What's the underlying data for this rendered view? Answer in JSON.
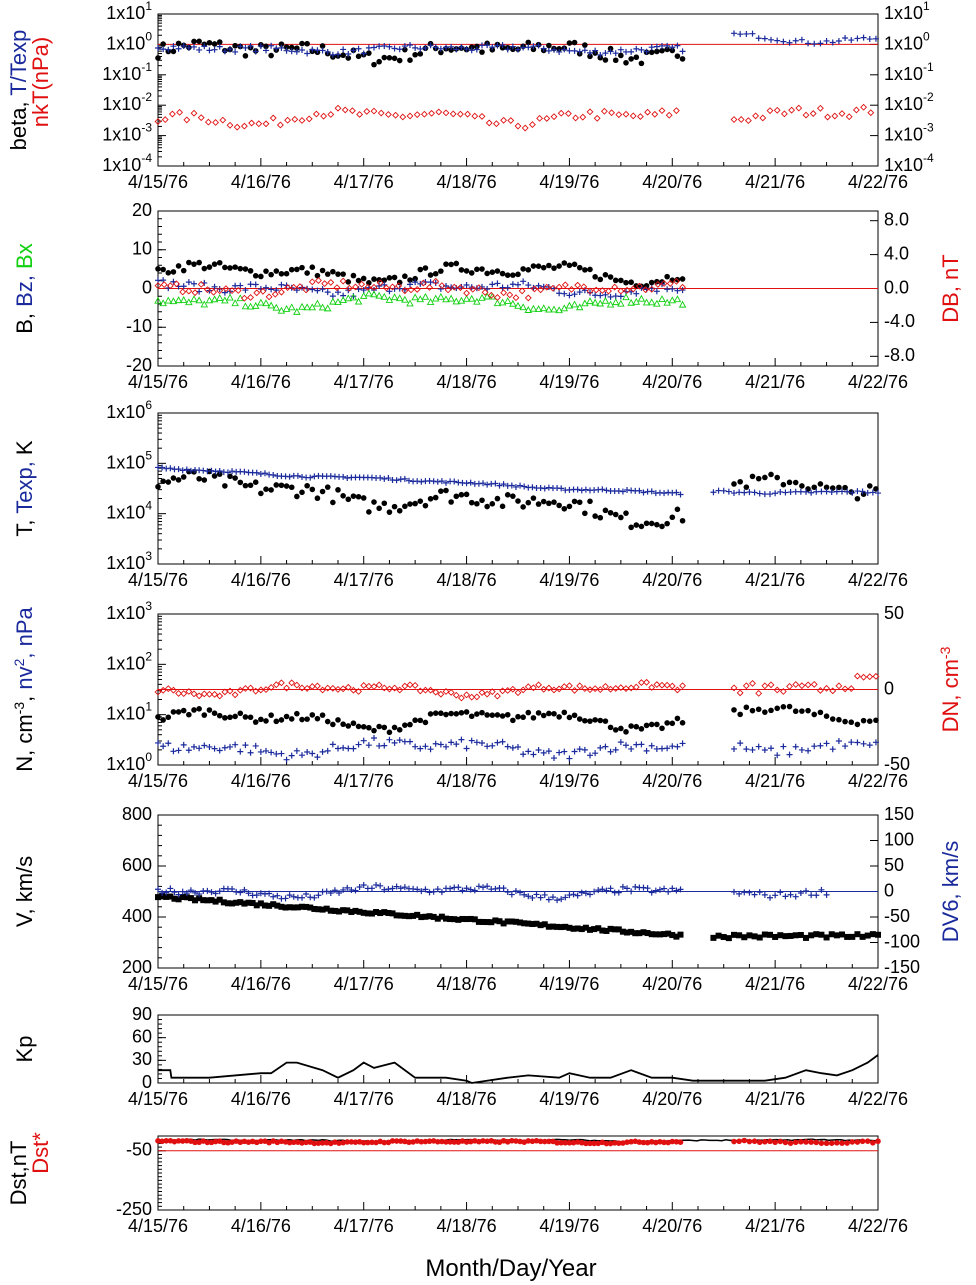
{
  "figure": {
    "x_axis_title": "Month/Day/Year",
    "date_ticks": [
      "4/15/76",
      "4/16/76",
      "4/17/76",
      "4/18/76",
      "4/19/76",
      "4/20/76",
      "4/21/76",
      "4/22/76"
    ],
    "colors": {
      "black": "#000000",
      "blue": "#1a2a9c",
      "red": "#e01010",
      "green": "#10d010",
      "refline": "#e01010"
    }
  },
  "chart_data": [
    {
      "id": "beta",
      "type": "scatter",
      "ylabel_left": [
        "beta, ",
        "T/Texp"
      ],
      "ylabel_left2": "nkT(nPa)",
      "yscale": "log",
      "ylim": [
        0.0001,
        10
      ],
      "yticks_left": [
        {
          "b": "1x10",
          "e": "1"
        },
        {
          "b": "1x10",
          "e": "0"
        },
        {
          "b": "1x10",
          "e": "-1"
        },
        {
          "b": "1x10",
          "e": "-2"
        },
        {
          "b": "1x10",
          "e": "-3"
        },
        {
          "b": "1x10",
          "e": "-4"
        }
      ],
      "yticks_right": [
        {
          "b": "1x10",
          "e": "1"
        },
        {
          "b": "1x10",
          "e": "0"
        },
        {
          "b": "1x10",
          "e": "-1"
        },
        {
          "b": "1x10",
          "e": "-2"
        },
        {
          "b": "1x10",
          "e": "-3"
        },
        {
          "b": "1x10",
          "e": "-4"
        }
      ],
      "refline": 1,
      "series": [
        {
          "color": "black",
          "marker": "dot",
          "start": 0,
          "end": 5.1,
          "step": 0.05,
          "base": 0.6,
          "amp": 0.5,
          "noise": 0.45,
          "mode": "log"
        },
        {
          "color": "blue",
          "marker": "plus",
          "start": 0,
          "end": 5.1,
          "step": 0.05,
          "base": 0.7,
          "amp": 0.2,
          "noise": 0.2,
          "mode": "log"
        },
        {
          "color": "blue",
          "marker": "plus",
          "start": 5.6,
          "end": 7.0,
          "step": 0.06,
          "base": 1.6,
          "amp": 0.3,
          "noise": 0.15,
          "mode": "log"
        },
        {
          "color": "red",
          "marker": "diamond",
          "start": 0,
          "end": 5.1,
          "step": 0.07,
          "base": 0.004,
          "amp": 0.5,
          "noise": 0.3,
          "mode": "log"
        },
        {
          "color": "red",
          "marker": "diamond",
          "start": 5.6,
          "end": 7.0,
          "step": 0.07,
          "base": 0.006,
          "amp": 0.5,
          "noise": 0.3,
          "mode": "log"
        }
      ]
    },
    {
      "id": "bfield",
      "type": "scatter",
      "ylabel_left": [
        "B, ",
        "Bz, ",
        "Bx"
      ],
      "ylabel_right": "DB, nT",
      "ylim": [
        -20,
        20
      ],
      "yticks_left": [
        "20",
        "10",
        "0",
        "-10",
        "-20"
      ],
      "yticks_right": [
        "8.0",
        "4.0",
        "0.0",
        "-4.0",
        "-8.0"
      ],
      "refline": 0,
      "series": [
        {
          "color": "black",
          "marker": "dot",
          "start": 0,
          "end": 5.1,
          "step": 0.05,
          "base": 4,
          "amp": 2.5,
          "noise": 1.2,
          "mode": "lin"
        },
        {
          "color": "blue",
          "marker": "plus",
          "start": 0,
          "end": 5.1,
          "step": 0.05,
          "base": 0,
          "amp": 1.5,
          "noise": 1.2,
          "mode": "lin"
        },
        {
          "color": "green",
          "marker": "tri",
          "start": 0,
          "end": 5.1,
          "step": 0.05,
          "base": -3.5,
          "amp": 2,
          "noise": 1.0,
          "mode": "lin"
        },
        {
          "color": "red",
          "marker": "diamond",
          "start": 0,
          "end": 5.1,
          "step": 0.06,
          "base": 0,
          "amp": 1.5,
          "noise": 1.2,
          "mode": "lin"
        }
      ]
    },
    {
      "id": "temp",
      "type": "scatter",
      "ylabel_left": [
        "T, ",
        "Texp, ",
        "K"
      ],
      "yscale": "log",
      "ylim": [
        1000,
        1000000
      ],
      "yticks_left": [
        {
          "b": "1x10",
          "e": "6"
        },
        {
          "b": "1x10",
          "e": "5"
        },
        {
          "b": "1x10",
          "e": "4"
        },
        {
          "b": "1x10",
          "e": "3"
        }
      ],
      "series": [
        {
          "color": "black",
          "marker": "dot",
          "start": 0,
          "end": 5.1,
          "step": 0.05,
          "base": 40000,
          "amp": 0.4,
          "noise": 0.3,
          "mode": "log",
          "trend": -0.12
        },
        {
          "color": "black",
          "marker": "dot",
          "start": 5.6,
          "end": 7.0,
          "step": 0.06,
          "base": 35000,
          "amp": 0.3,
          "noise": 0.25,
          "mode": "log"
        },
        {
          "color": "blue",
          "marker": "plus",
          "start": 0,
          "end": 5.1,
          "step": 0.04,
          "base": 80000,
          "amp": 0.05,
          "noise": 0.04,
          "mode": "log",
          "trend": -0.1
        },
        {
          "color": "blue",
          "marker": "plus",
          "start": 5.4,
          "end": 7.0,
          "step": 0.05,
          "base": 27000,
          "amp": 0.05,
          "noise": 0.05,
          "mode": "log"
        }
      ]
    },
    {
      "id": "density",
      "type": "scatter",
      "ylabel_left": [
        "N, cm",
        "-3",
        ", ",
        "nv",
        "2",
        ", nPa"
      ],
      "ylabel_right": [
        "DN, cm",
        "-3"
      ],
      "yscale": "log",
      "ylim": [
        1,
        1000
      ],
      "yticks_left": [
        {
          "b": "1x10",
          "e": "3"
        },
        {
          "b": "1x10",
          "e": "2"
        },
        {
          "b": "1x10",
          "e": "1"
        },
        {
          "b": "1x10",
          "e": "0"
        }
      ],
      "yticks_right": [
        "50",
        "0",
        "-50"
      ],
      "refline_right": 0,
      "series": [
        {
          "color": "black",
          "marker": "dot",
          "start": 0,
          "end": 5.1,
          "step": 0.05,
          "base": 8,
          "amp": 0.4,
          "noise": 0.15,
          "mode": "log"
        },
        {
          "color": "black",
          "marker": "dot",
          "start": 5.6,
          "end": 7.0,
          "step": 0.06,
          "base": 10,
          "amp": 0.3,
          "noise": 0.15,
          "mode": "log"
        },
        {
          "color": "blue",
          "marker": "plus",
          "start": 0,
          "end": 5.1,
          "step": 0.05,
          "base": 2.2,
          "amp": 0.3,
          "noise": 0.2,
          "mode": "log"
        },
        {
          "color": "blue",
          "marker": "plus",
          "start": 5.6,
          "end": 7.0,
          "step": 0.06,
          "base": 2.5,
          "amp": 0.3,
          "noise": 0.2,
          "mode": "log"
        },
        {
          "color": "red",
          "marker": "diamond",
          "start": 0,
          "end": 5.1,
          "step": 0.05,
          "base": 0,
          "amp": 2,
          "noise": 1,
          "mode": "right"
        },
        {
          "color": "red",
          "marker": "diamond",
          "start": 5.6,
          "end": 7.0,
          "step": 0.06,
          "base": 0,
          "amp": 3,
          "noise": 2,
          "mode": "right"
        }
      ]
    },
    {
      "id": "velocity",
      "type": "scatter",
      "ylabel_left": "V, km/s",
      "ylabel_right": "DV6, km/s",
      "ylim": [
        200,
        800
      ],
      "yticks_left": [
        "800",
        "600",
        "400",
        "200"
      ],
      "yticks_right": [
        "150",
        "100",
        "50",
        "0",
        "-50",
        "-100",
        "-150"
      ],
      "refline_right": 0,
      "series": [
        {
          "color": "black",
          "marker": "square",
          "start": 0,
          "end": 5.1,
          "step": 0.04,
          "base": 480,
          "amp": 0,
          "noise": 6,
          "mode": "lin",
          "trend": -30
        },
        {
          "color": "black",
          "marker": "square",
          "start": 5.4,
          "end": 7.0,
          "step": 0.05,
          "base": 325,
          "amp": 0,
          "noise": 8,
          "mode": "lin"
        },
        {
          "color": "blue",
          "marker": "plus",
          "start": 0,
          "end": 5.1,
          "step": 0.04,
          "base": 0,
          "amp": 6,
          "noise": 3,
          "mode": "right"
        },
        {
          "color": "blue",
          "marker": "plus",
          "start": 5.6,
          "end": 6.5,
          "step": 0.05,
          "base": 0,
          "amp": 4,
          "noise": 3,
          "mode": "right"
        }
      ]
    },
    {
      "id": "kp",
      "type": "line",
      "ylabel_left": "Kp",
      "ylim": [
        0,
        90
      ],
      "yticks_left": [
        "90",
        "60",
        "30",
        "0"
      ],
      "x": [
        0,
        0.12,
        0.13,
        0.5,
        1.0,
        1.1,
        1.25,
        1.35,
        1.6,
        1.75,
        1.9,
        2.0,
        2.1,
        2.3,
        2.5,
        2.8,
        3.0,
        3.05,
        3.4,
        3.6,
        3.9,
        4.0,
        4.2,
        4.4,
        4.6,
        4.8,
        5.0,
        5.2,
        5.5,
        5.7,
        5.9,
        6.1,
        6.3,
        6.45,
        6.6,
        6.75,
        6.9,
        7.0
      ],
      "values": [
        17,
        17,
        7,
        7,
        13,
        13,
        27,
        27,
        17,
        7,
        17,
        27,
        20,
        27,
        7,
        7,
        3,
        0,
        7,
        10,
        7,
        13,
        7,
        7,
        17,
        7,
        7,
        3,
        3,
        3,
        3,
        7,
        17,
        13,
        10,
        17,
        27,
        37
      ]
    },
    {
      "id": "dst",
      "type": "line",
      "ylabel_left": "Dst,nT",
      "ylabel_left2": "Dst*",
      "ylim": [
        -250,
        0
      ],
      "yticks_left": [
        "-50",
        "-250"
      ],
      "refline": -50,
      "series": [
        {
          "color": "black",
          "marker": "line",
          "start": 0,
          "end": 7.0,
          "step": 0.04,
          "base": -15,
          "amp": 3,
          "noise": 2,
          "mode": "lin"
        },
        {
          "color": "red",
          "marker": "dot",
          "start": 0,
          "end": 5.1,
          "step": 0.04,
          "base": -20,
          "amp": 3,
          "noise": 3,
          "mode": "lin"
        },
        {
          "color": "red",
          "marker": "dot",
          "start": 5.6,
          "end": 7.0,
          "step": 0.05,
          "base": -20,
          "amp": 3,
          "noise": 3,
          "mode": "lin"
        }
      ]
    }
  ]
}
